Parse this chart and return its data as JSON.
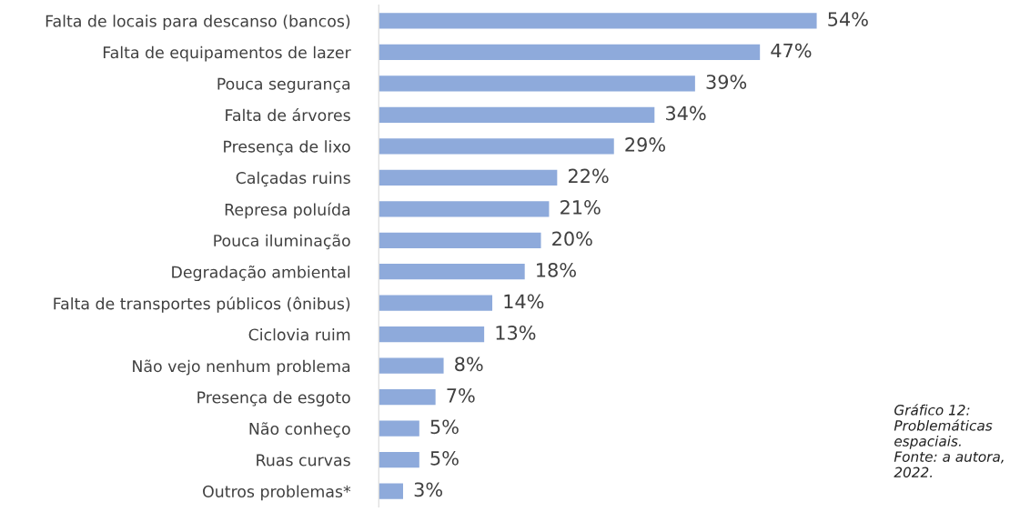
{
  "chart_data": {
    "type": "bar",
    "orientation": "horizontal",
    "categories": [
      "Falta de locais para descanso (bancos)",
      "Falta de equipamentos de lazer",
      "Pouca segurança",
      "Falta de árvores",
      "Presença de lixo",
      "Calçadas ruins",
      "Represa poluída",
      "Pouca iluminação",
      "Degradação ambiental",
      "Falta de transportes públicos (ônibus)",
      "Ciclovia ruim",
      "Não vejo nenhum problema",
      "Presença de esgoto",
      "Não conheço",
      "Ruas curvas",
      "Outros problemas*"
    ],
    "values": [
      54,
      47,
      39,
      34,
      29,
      22,
      21,
      20,
      18,
      14,
      13,
      8,
      7,
      5,
      5,
      3
    ],
    "value_labels": [
      "54%",
      "47%",
      "39%",
      "34%",
      "29%",
      "22%",
      "21%",
      "20%",
      "18%",
      "14%",
      "13%",
      "8%",
      "7%",
      "5%",
      "5%",
      "3%"
    ],
    "color": "#8eaadb",
    "annotations": [
      "Gráfico 12: Problemáticas espaciais. Fonte: a autora, 2022."
    ]
  }
}
